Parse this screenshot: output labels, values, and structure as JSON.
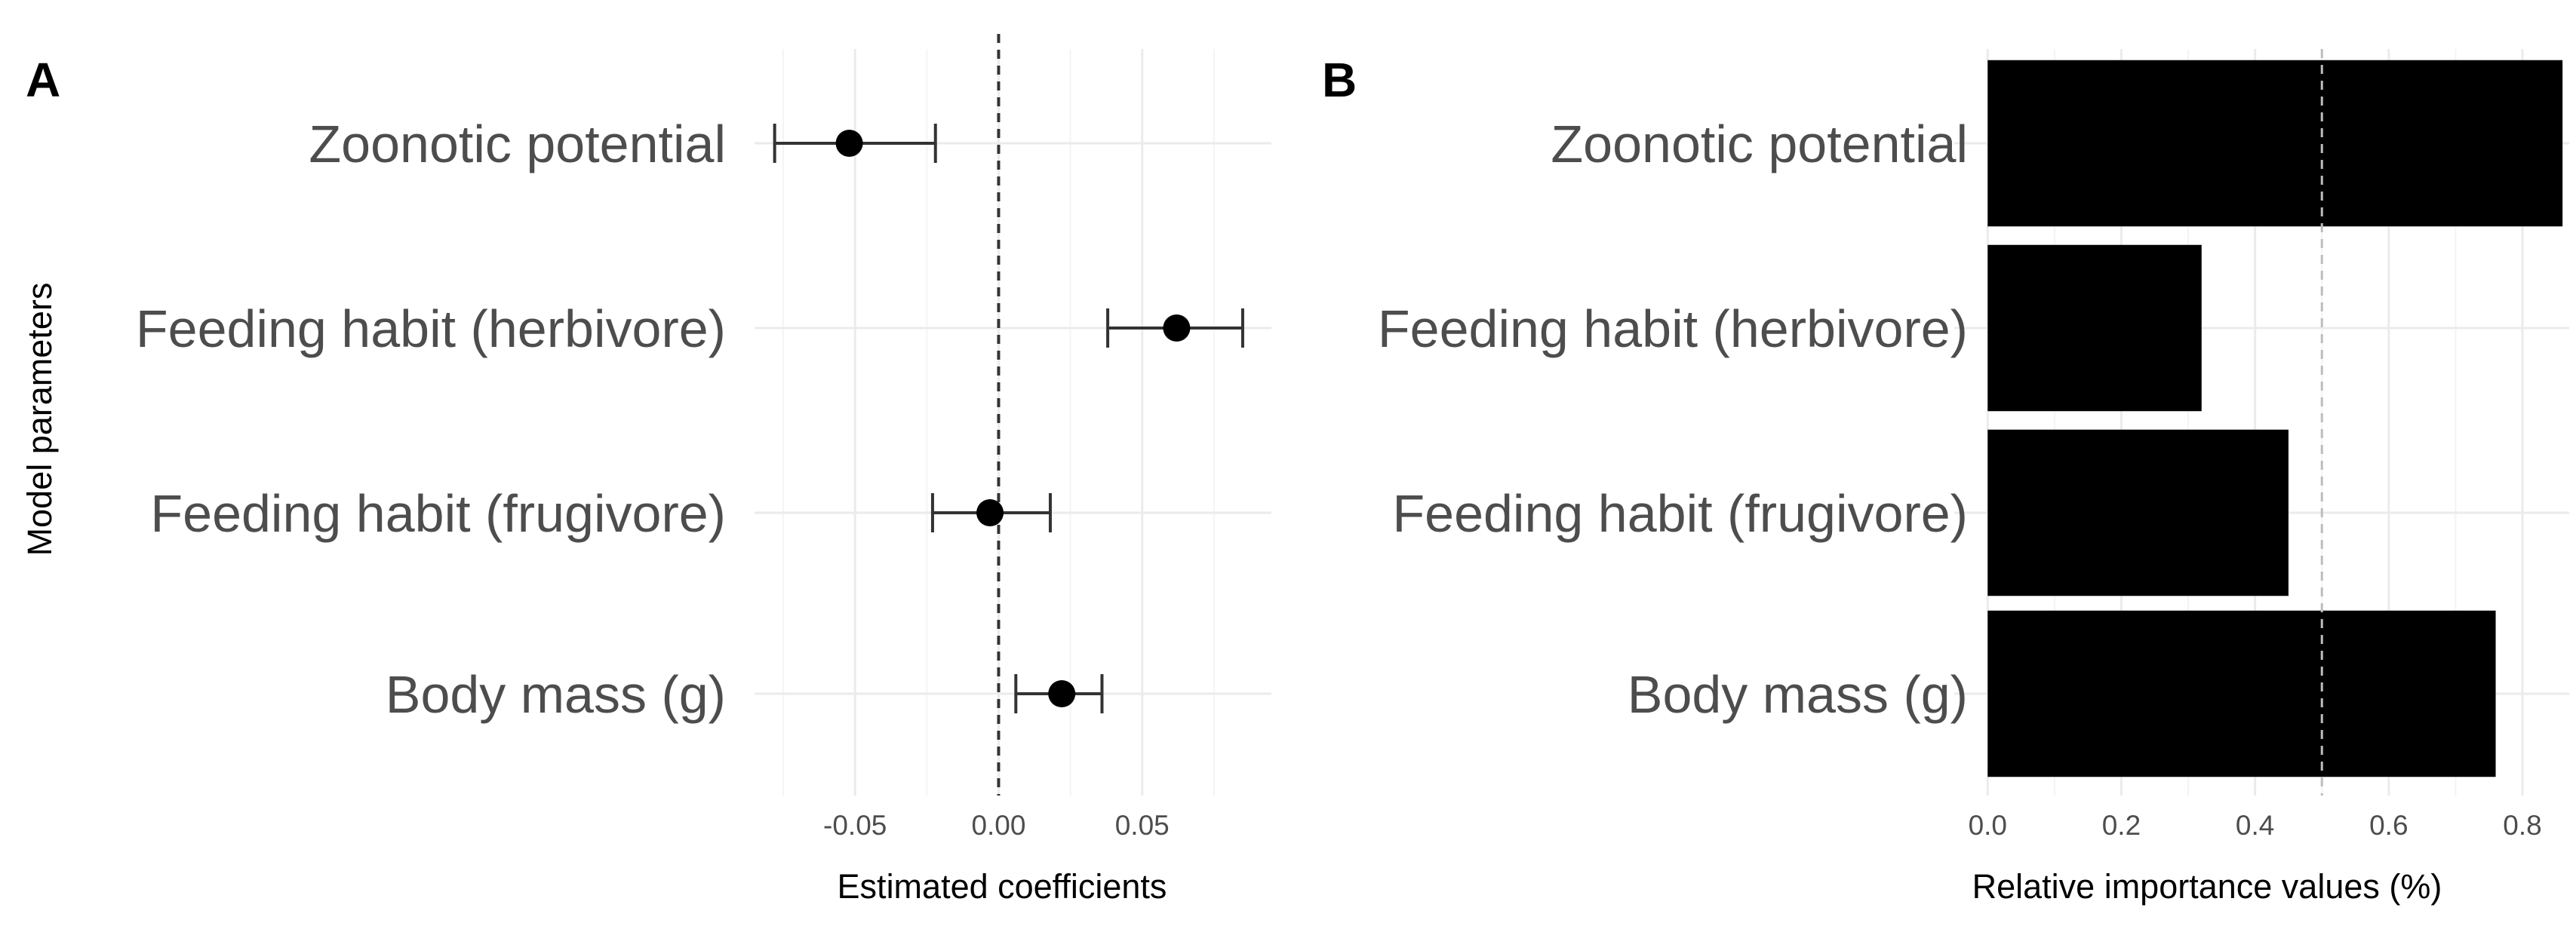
{
  "chart_data": [
    {
      "panel": "A",
      "type": "scatter",
      "xlabel": "Estimated coefficients",
      "ylabel": "Model parameters",
      "categories": [
        "Zoonotic potential",
        "Feeding habit (herbivore)",
        "Feeding habit (frugivore)",
        "Body mass (g)"
      ],
      "points": [
        {
          "label": "Zoonotic potential",
          "estimate": -0.052,
          "lower": -0.078,
          "upper": -0.022
        },
        {
          "label": "Feeding habit (herbivore)",
          "estimate": 0.062,
          "lower": 0.038,
          "upper": 0.085
        },
        {
          "label": "Feeding habit (frugivore)",
          "estimate": -0.003,
          "lower": -0.023,
          "upper": 0.018
        },
        {
          "label": "Body mass (g)",
          "estimate": 0.022,
          "lower": 0.006,
          "upper": 0.036
        }
      ],
      "xlim": [
        -0.085,
        0.095
      ],
      "xticks": [
        -0.05,
        0.0,
        0.05
      ],
      "xtick_labels": [
        "-0.05",
        "0.00",
        "0.05"
      ],
      "reference_line": 0.0,
      "grid": true
    },
    {
      "panel": "B",
      "type": "bar",
      "orientation": "horizontal",
      "xlabel": "Relative importance values (%)",
      "ylabel": "",
      "categories": [
        "Zoonotic potential",
        "Feeding habit (herbivore)",
        "Feeding habit (frugivore)",
        "Body mass (g)"
      ],
      "values": [
        0.86,
        0.32,
        0.45,
        0.76
      ],
      "xlim": [
        -0.05,
        0.87
      ],
      "xticks": [
        0.0,
        0.2,
        0.4,
        0.6,
        0.8
      ],
      "xtick_labels": [
        "0.0",
        "0.2",
        "0.4",
        "0.6",
        "0.8"
      ],
      "reference_line": 0.5,
      "bar_color": "#000000",
      "grid": true
    }
  ]
}
